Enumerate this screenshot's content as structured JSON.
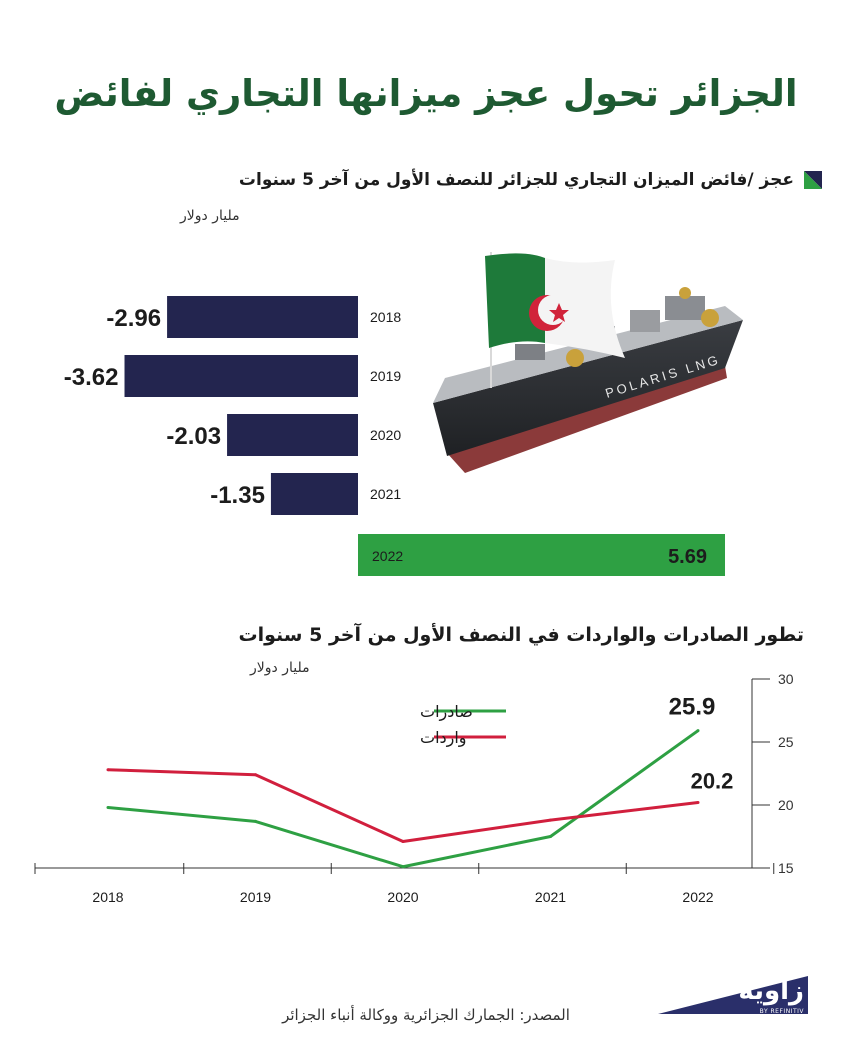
{
  "title": "الجزائر تحول عجز ميزانها التجاري لفائض",
  "colors": {
    "deficit": "#23254f",
    "surplus": "#2ea043",
    "exports": "#2ea043",
    "imports": "#d11f3d",
    "title": "#1e5a32"
  },
  "bar_section": {
    "title": "عجز /فائض الميزان التجاري للجزائر للنصف الأول من   آخر 5 سنوات",
    "unit": "مليار دولار"
  },
  "line_section": {
    "title": "تطور الصادرات والواردات في النصف الأول من آخر 5 سنوات",
    "unit": "مليار دولار"
  },
  "source": "المصدر: الجمارك الجزائرية ووكالة أنباء الجزائر",
  "logo": {
    "name": "زاوية",
    "sub": "BY REFINITIV"
  },
  "illustration": {
    "icon": "lng-tanker-ship-with-algerian-flag-icon",
    "hull_text": "POLARIS LNG"
  },
  "chart_data": [
    {
      "type": "bar",
      "orientation": "horizontal",
      "categories": [
        "2018",
        "2019",
        "2020",
        "2021",
        "2022"
      ],
      "values": [
        -2.96,
        -3.62,
        -2.03,
        -1.35,
        5.69
      ],
      "value_labels": [
        "-2.96",
        "-3.62",
        "-2.03",
        "-1.35",
        "5.69"
      ],
      "title": "عجز /فائض الميزان التجاري للجزائر للنصف الأول من   آخر 5 سنوات",
      "xlabel": "مليار دولار"
    },
    {
      "type": "line",
      "x": [
        "2018",
        "2019",
        "2020",
        "2021",
        "2022"
      ],
      "series": [
        {
          "name": "صادرات",
          "values": [
            19.8,
            18.7,
            15.1,
            17.5,
            25.9
          ],
          "end_label": "25.9"
        },
        {
          "name": "واردات",
          "values": [
            22.8,
            22.4,
            17.1,
            18.8,
            20.2
          ],
          "end_label": "20.2"
        }
      ],
      "ylim": [
        15,
        30
      ],
      "yticks": [
        "15",
        "20",
        "25",
        "30"
      ],
      "ylabel": "مليار دولار",
      "legend": "top-center",
      "grid": false
    }
  ]
}
